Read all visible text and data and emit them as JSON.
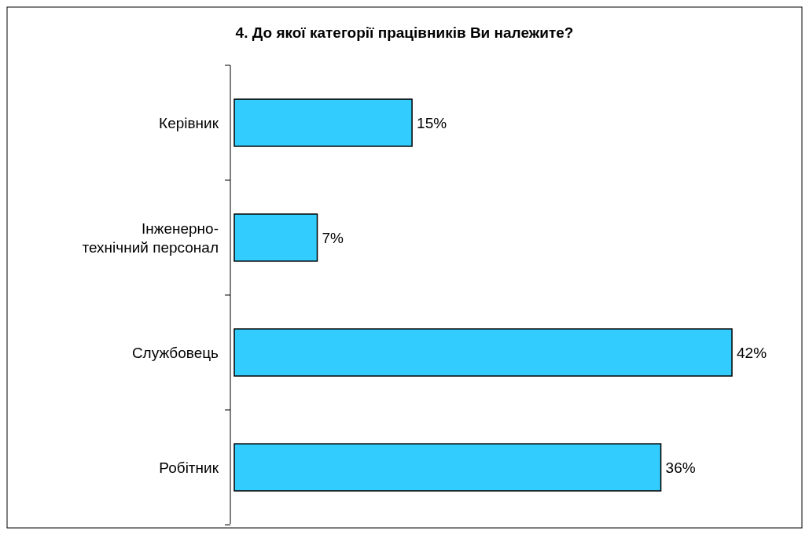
{
  "chart_data": {
    "type": "bar",
    "orientation": "horizontal",
    "title": "4. До якої категорії працівників Ви належите?",
    "categories": [
      "Керівник",
      "Інженерно-технічний персонал",
      "Службовець",
      "Робітник"
    ],
    "values": [
      15,
      7,
      42,
      36
    ],
    "value_labels": [
      "15%",
      "7%",
      "42%",
      "36%"
    ],
    "color": "#33ccff"
  }
}
